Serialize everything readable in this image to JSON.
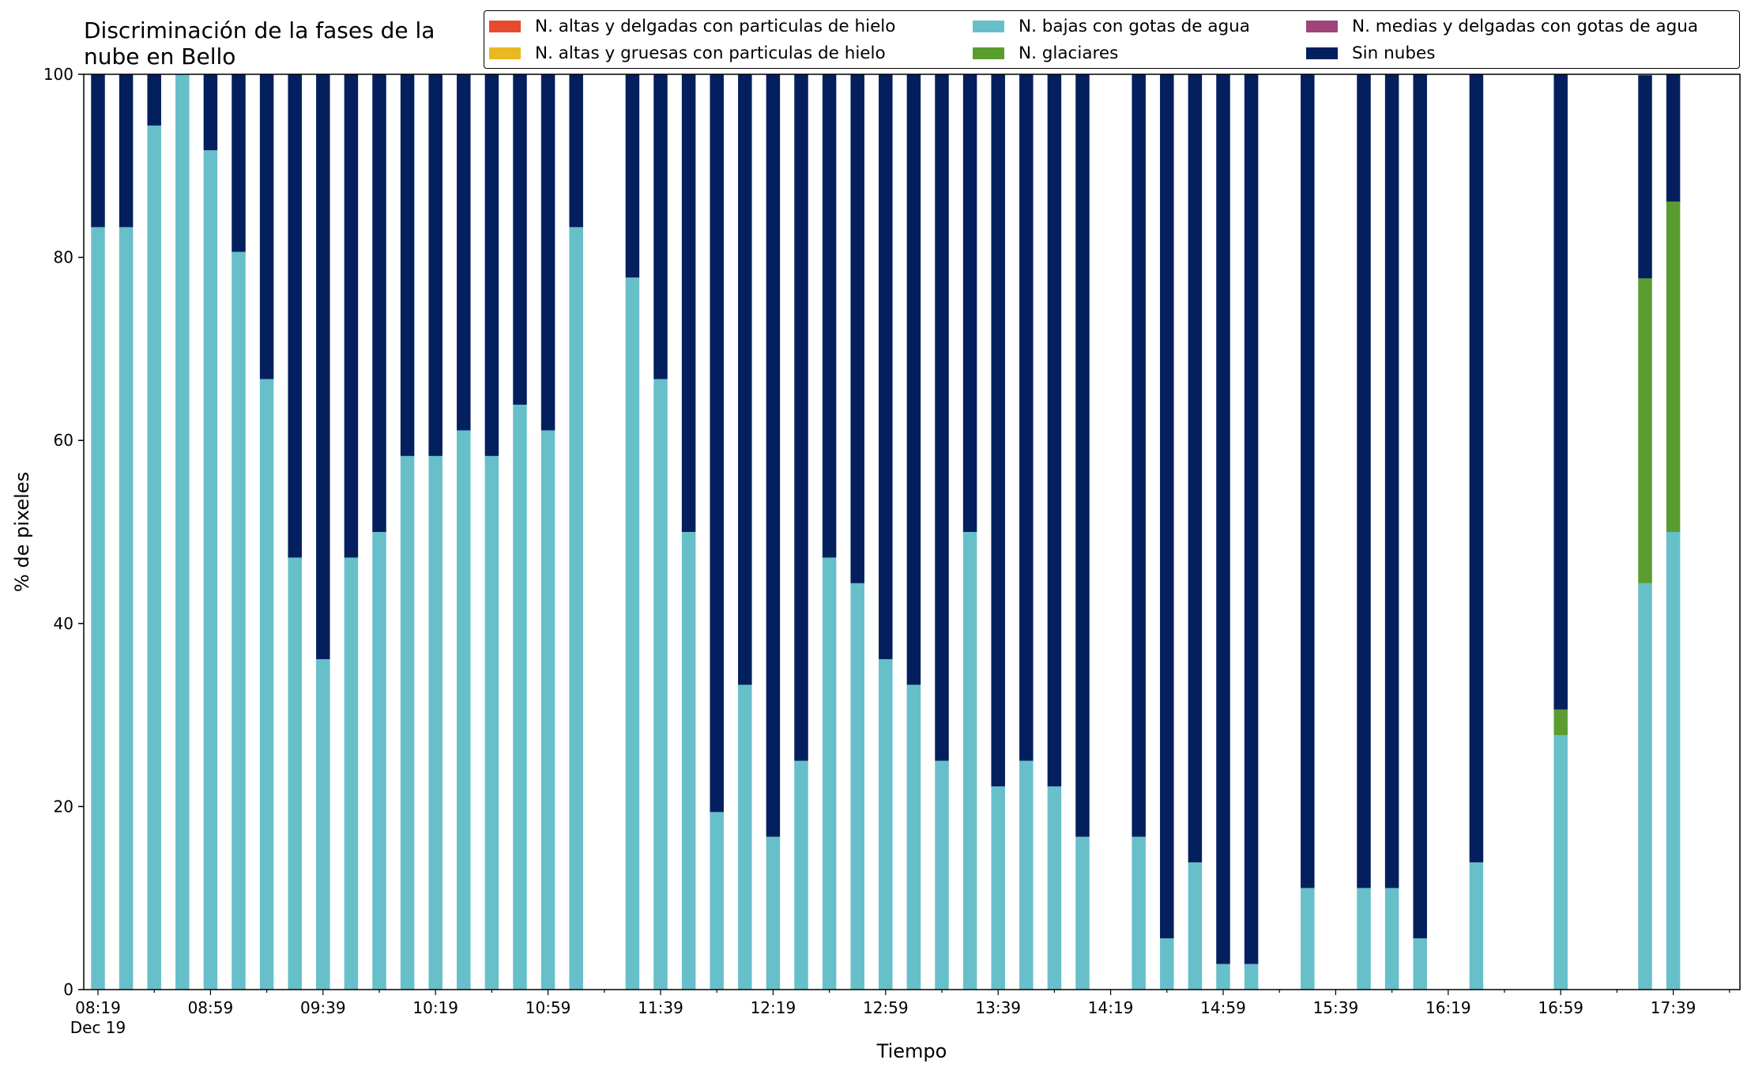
{
  "chart_data": {
    "type": "bar",
    "stacked": true,
    "title": "Discriminación de la fases de la nube en Bello",
    "title_lines": [
      "Discriminación de la fases de la",
      "nube en Bello"
    ],
    "xlabel": "Tiempo",
    "ylabel": "% de pixeles",
    "ylim": [
      0,
      100
    ],
    "yticks": [
      0,
      20,
      40,
      60,
      80,
      100
    ],
    "xticks": [
      {
        "slot": 0,
        "label": "08:19",
        "sublabel": "Dec 19"
      },
      {
        "slot": 4,
        "label": "08:59"
      },
      {
        "slot": 8,
        "label": "09:39"
      },
      {
        "slot": 12,
        "label": "10:19"
      },
      {
        "slot": 16,
        "label": "10:59"
      },
      {
        "slot": 20,
        "label": "11:39"
      },
      {
        "slot": 24,
        "label": "12:19"
      },
      {
        "slot": 28,
        "label": "12:59"
      },
      {
        "slot": 32,
        "label": "13:39"
      },
      {
        "slot": 36,
        "label": "14:19"
      },
      {
        "slot": 40,
        "label": "14:59"
      },
      {
        "slot": 44,
        "label": "15:39"
      },
      {
        "slot": 48,
        "label": "16:19"
      },
      {
        "slot": 52,
        "label": "16:59"
      },
      {
        "slot": 56,
        "label": "17:39"
      }
    ],
    "slot_count": 59,
    "legend_position": "top-right",
    "grid": false,
    "series_order": [
      "altas_delgadas",
      "altas_gruesas",
      "bajas_agua",
      "medias_delgadas",
      "glaciares",
      "sin_nubes"
    ],
    "stack_order": [
      "bajas_agua",
      "glaciares",
      "altas_delgadas",
      "altas_gruesas",
      "medias_delgadas",
      "sin_nubes"
    ],
    "series": [
      {
        "key": "altas_delgadas",
        "name": "N. altas y delgadas con particulas de hielo",
        "color": "#e84a2f"
      },
      {
        "key": "altas_gruesas",
        "name": "N. altas y gruesas con particulas de hielo",
        "color": "#e8b923"
      },
      {
        "key": "bajas_agua",
        "name": "N. bajas con gotas de agua",
        "color": "#67bfca"
      },
      {
        "key": "medias_delgadas",
        "name": "N. medias y delgadas con gotas de agua",
        "color": "#a0457a"
      },
      {
        "key": "glaciares",
        "name": "N. glaciares",
        "color": "#5a9c2f"
      },
      {
        "key": "sin_nubes",
        "name": "Sin nubes",
        "color": "#041f5e"
      }
    ],
    "bars": [
      {
        "slot": 0,
        "bajas_agua": 83.3,
        "glaciares": 0,
        "sin_nubes": 16.7
      },
      {
        "slot": 1,
        "bajas_agua": 83.3,
        "glaciares": 0,
        "sin_nubes": 16.7
      },
      {
        "slot": 2,
        "bajas_agua": 94.4,
        "glaciares": 0,
        "sin_nubes": 5.6
      },
      {
        "slot": 3,
        "bajas_agua": 100,
        "glaciares": 0,
        "sin_nubes": 0
      },
      {
        "slot": 4,
        "bajas_agua": 91.7,
        "glaciares": 0,
        "sin_nubes": 8.3
      },
      {
        "slot": 5,
        "bajas_agua": 80.6,
        "glaciares": 0,
        "sin_nubes": 19.4
      },
      {
        "slot": 6,
        "bajas_agua": 66.7,
        "glaciares": 0,
        "sin_nubes": 33.3
      },
      {
        "slot": 7,
        "bajas_agua": 47.2,
        "glaciares": 0,
        "sin_nubes": 52.8
      },
      {
        "slot": 8,
        "bajas_agua": 36.1,
        "glaciares": 0,
        "sin_nubes": 63.9
      },
      {
        "slot": 9,
        "bajas_agua": 47.2,
        "glaciares": 0,
        "sin_nubes": 52.8
      },
      {
        "slot": 10,
        "bajas_agua": 50.0,
        "glaciares": 0,
        "sin_nubes": 50.0
      },
      {
        "slot": 11,
        "bajas_agua": 58.3,
        "glaciares": 0,
        "sin_nubes": 41.7
      },
      {
        "slot": 12,
        "bajas_agua": 58.3,
        "glaciares": 0,
        "sin_nubes": 41.7
      },
      {
        "slot": 13,
        "bajas_agua": 61.1,
        "glaciares": 0,
        "sin_nubes": 38.9
      },
      {
        "slot": 14,
        "bajas_agua": 58.3,
        "glaciares": 0,
        "sin_nubes": 41.7
      },
      {
        "slot": 15,
        "bajas_agua": 63.9,
        "glaciares": 0,
        "sin_nubes": 36.1
      },
      {
        "slot": 16,
        "bajas_agua": 61.1,
        "glaciares": 0,
        "sin_nubes": 38.9
      },
      {
        "slot": 17,
        "bajas_agua": 83.3,
        "glaciares": 0,
        "sin_nubes": 16.7
      },
      {
        "slot": 19,
        "bajas_agua": 77.8,
        "glaciares": 0,
        "sin_nubes": 22.2
      },
      {
        "slot": 20,
        "bajas_agua": 66.7,
        "glaciares": 0,
        "sin_nubes": 33.3
      },
      {
        "slot": 21,
        "bajas_agua": 50.0,
        "glaciares": 0,
        "sin_nubes": 50.0
      },
      {
        "slot": 22,
        "bajas_agua": 19.4,
        "glaciares": 0,
        "sin_nubes": 80.6
      },
      {
        "slot": 23,
        "bajas_agua": 33.3,
        "glaciares": 0,
        "sin_nubes": 66.7
      },
      {
        "slot": 24,
        "bajas_agua": 16.7,
        "glaciares": 0,
        "sin_nubes": 83.3
      },
      {
        "slot": 25,
        "bajas_agua": 25.0,
        "glaciares": 0,
        "sin_nubes": 75.0
      },
      {
        "slot": 26,
        "bajas_agua": 47.2,
        "glaciares": 0,
        "sin_nubes": 52.8
      },
      {
        "slot": 27,
        "bajas_agua": 44.4,
        "glaciares": 0,
        "sin_nubes": 55.6
      },
      {
        "slot": 28,
        "bajas_agua": 36.1,
        "glaciares": 0,
        "sin_nubes": 63.9
      },
      {
        "slot": 29,
        "bajas_agua": 33.3,
        "glaciares": 0,
        "sin_nubes": 66.7
      },
      {
        "slot": 30,
        "bajas_agua": 25.0,
        "glaciares": 0,
        "sin_nubes": 75.0
      },
      {
        "slot": 31,
        "bajas_agua": 50.0,
        "glaciares": 0,
        "sin_nubes": 50.0
      },
      {
        "slot": 32,
        "bajas_agua": 22.2,
        "glaciares": 0,
        "sin_nubes": 77.8
      },
      {
        "slot": 33,
        "bajas_agua": 25.0,
        "glaciares": 0,
        "sin_nubes": 75.0
      },
      {
        "slot": 34,
        "bajas_agua": 22.2,
        "glaciares": 0,
        "sin_nubes": 77.8
      },
      {
        "slot": 35,
        "bajas_agua": 16.7,
        "glaciares": 0,
        "sin_nubes": 83.3
      },
      {
        "slot": 37,
        "bajas_agua": 16.7,
        "glaciares": 0,
        "sin_nubes": 83.3
      },
      {
        "slot": 38,
        "bajas_agua": 5.6,
        "glaciares": 0,
        "sin_nubes": 94.4
      },
      {
        "slot": 39,
        "bajas_agua": 13.9,
        "glaciares": 0,
        "sin_nubes": 86.1
      },
      {
        "slot": 40,
        "bajas_agua": 2.8,
        "glaciares": 0,
        "sin_nubes": 97.2
      },
      {
        "slot": 41,
        "bajas_agua": 2.8,
        "glaciares": 0,
        "sin_nubes": 97.2
      },
      {
        "slot": 43,
        "bajas_agua": 11.1,
        "glaciares": 0,
        "sin_nubes": 88.9
      },
      {
        "slot": 45,
        "bajas_agua": 11.1,
        "glaciares": 0,
        "sin_nubes": 88.9
      },
      {
        "slot": 46,
        "bajas_agua": 11.1,
        "glaciares": 0,
        "sin_nubes": 88.9
      },
      {
        "slot": 47,
        "bajas_agua": 5.6,
        "glaciares": 0,
        "sin_nubes": 94.4
      },
      {
        "slot": 49,
        "bajas_agua": 13.9,
        "glaciares": 0,
        "sin_nubes": 86.1
      },
      {
        "slot": 52,
        "bajas_agua": 27.8,
        "glaciares": 2.8,
        "sin_nubes": 69.4
      },
      {
        "slot": 55,
        "bajas_agua": 44.4,
        "glaciares": 33.3,
        "sin_nubes": 22.2
      },
      {
        "slot": 56,
        "bajas_agua": 50.0,
        "glaciares": 36.1,
        "sin_nubes": 13.9
      }
    ]
  }
}
